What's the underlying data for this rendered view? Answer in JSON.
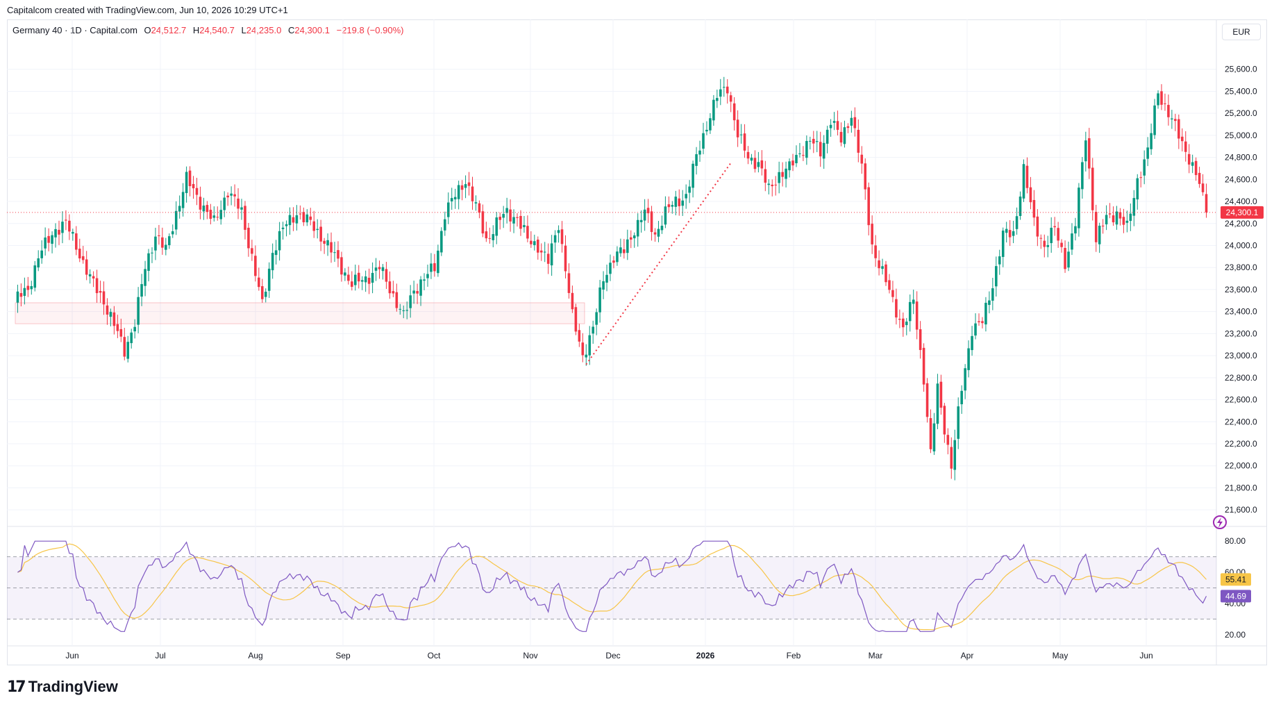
{
  "header": {
    "caption": "Capitalcom created with TradingView.com, Jun 10, 2026 10:29 UTC+1"
  },
  "legend": {
    "symbol": "Germany 40 · 1D · Capital.com",
    "open_label": "O",
    "open_value": "24,512.7",
    "high_label": "H",
    "high_value": "24,540.7",
    "low_label": "L",
    "low_value": "24,235.0",
    "close_label": "C",
    "close_value": "24,300.1",
    "change": "−219.8 (−0.90%)"
  },
  "currency": "EUR",
  "footer": {
    "brand": "TradingView"
  },
  "colors": {
    "up": "#089981",
    "down": "#f23645",
    "rsi": "#7e57c2",
    "rsi_ma": "#f7c548",
    "zone": "#f23645"
  },
  "icons": {
    "flash": "lightning-icon",
    "logo": "tradingview-logo-icon"
  },
  "chart_data": [
    {
      "type": "candlestick",
      "name": "Germany 40",
      "ylim": [
        21500,
        25800
      ],
      "y_ticks": [
        "25,600.0",
        "25,400.0",
        "25,200.0",
        "25,000.0",
        "24,800.0",
        "24,600.0",
        "24,400.0",
        "24,200.0",
        "24,000.0",
        "23,800.0",
        "23,600.0",
        "23,400.0",
        "23,200.0",
        "23,000.0",
        "22,800.0",
        "22,600.0",
        "22,400.0",
        "22,200.0",
        "22,000.0",
        "21,800.0",
        "21,600.0"
      ],
      "x_labels": [
        "Jun",
        "Jul",
        "Aug",
        "Sep",
        "Oct",
        "Nov",
        "Dec",
        "2026",
        "Feb",
        "Mar",
        "Apr",
        "May",
        "Jun"
      ],
      "last_price": "24,300.1",
      "last_value": 24300.1,
      "support_zone": [
        23290,
        23480
      ],
      "anchors": [
        [
          0,
          23500
        ],
        [
          4,
          23600
        ],
        [
          7,
          23900
        ],
        [
          12,
          24150
        ],
        [
          15,
          24200
        ],
        [
          18,
          24000
        ],
        [
          22,
          23700
        ],
        [
          26,
          23500
        ],
        [
          30,
          23200
        ],
        [
          32,
          23050
        ],
        [
          35,
          23300
        ],
        [
          38,
          23800
        ],
        [
          41,
          24100
        ],
        [
          44,
          23950
        ],
        [
          47,
          24300
        ],
        [
          50,
          24600
        ],
        [
          54,
          24400
        ],
        [
          58,
          24200
        ],
        [
          62,
          24500
        ],
        [
          66,
          24300
        ],
        [
          69,
          23900
        ],
        [
          72,
          23450
        ],
        [
          75,
          23950
        ],
        [
          78,
          24150
        ],
        [
          82,
          24300
        ],
        [
          86,
          24200
        ],
        [
          90,
          24050
        ],
        [
          94,
          23850
        ],
        [
          98,
          23650
        ],
        [
          102,
          23700
        ],
        [
          106,
          23800
        ],
        [
          110,
          23550
        ],
        [
          113,
          23350
        ],
        [
          116,
          23600
        ],
        [
          119,
          23700
        ],
        [
          122,
          23800
        ],
        [
          125,
          24300
        ],
        [
          128,
          24450
        ],
        [
          131,
          24600
        ],
        [
          134,
          24350
        ],
        [
          137,
          24050
        ],
        [
          140,
          24200
        ],
        [
          143,
          24300
        ],
        [
          146,
          24250
        ],
        [
          149,
          24050
        ],
        [
          152,
          24000
        ],
        [
          155,
          23850
        ],
        [
          158,
          24200
        ],
        [
          160,
          23800
        ],
        [
          162,
          23350
        ],
        [
          165,
          23000
        ],
        [
          168,
          23250
        ],
        [
          171,
          23700
        ],
        [
          174,
          23900
        ],
        [
          177,
          23950
        ],
        [
          180,
          24150
        ],
        [
          183,
          24300
        ],
        [
          186,
          24100
        ],
        [
          189,
          24300
        ],
        [
          192,
          24400
        ],
        [
          195,
          24450
        ],
        [
          198,
          24800
        ],
        [
          201,
          25100
        ],
        [
          204,
          25350
        ],
        [
          207,
          25450
        ],
        [
          210,
          25000
        ],
        [
          213,
          24800
        ],
        [
          216,
          24750
        ],
        [
          219,
          24500
        ],
        [
          222,
          24650
        ],
        [
          225,
          24700
        ],
        [
          228,
          24850
        ],
        [
          231,
          24950
        ],
        [
          234,
          24850
        ],
        [
          237,
          25150
        ],
        [
          240,
          24950
        ],
        [
          243,
          25200
        ],
        [
          246,
          24700
        ],
        [
          249,
          24000
        ],
        [
          252,
          23750
        ],
        [
          255,
          23500
        ],
        [
          258,
          23250
        ],
        [
          261,
          23500
        ],
        [
          264,
          22800
        ],
        [
          266,
          22100
        ],
        [
          268,
          22700
        ],
        [
          270,
          22350
        ],
        [
          272,
          22000
        ],
        [
          275,
          22700
        ],
        [
          278,
          23250
        ],
        [
          281,
          23300
        ],
        [
          284,
          23650
        ],
        [
          287,
          24100
        ],
        [
          290,
          24100
        ],
        [
          293,
          24700
        ],
        [
          296,
          24200
        ],
        [
          299,
          24000
        ],
        [
          302,
          24150
        ],
        [
          305,
          23850
        ],
        [
          308,
          24200
        ],
        [
          311,
          25000
        ],
        [
          314,
          24050
        ],
        [
          317,
          24250
        ],
        [
          320,
          24300
        ],
        [
          323,
          24150
        ],
        [
          326,
          24600
        ],
        [
          329,
          24850
        ],
        [
          332,
          25400
        ],
        [
          335,
          25200
        ],
        [
          338,
          25000
        ],
        [
          341,
          24800
        ],
        [
          344,
          24550
        ],
        [
          346,
          24300
        ]
      ]
    },
    {
      "type": "line",
      "name": "RSI",
      "ylim": [
        15,
        85
      ],
      "y_ticks": [
        "80.00",
        "60.00",
        "40.00",
        "20.00"
      ],
      "bands": [
        70,
        50,
        30
      ],
      "rsi_value": "44.69",
      "rsi_ma_value": "55.41",
      "rsi_last": 44.69,
      "rsi_ma_last": 55.41
    }
  ]
}
